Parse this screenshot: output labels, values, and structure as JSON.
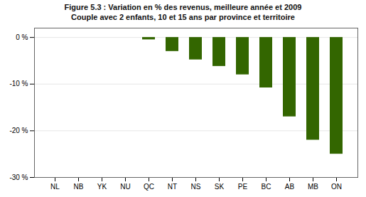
{
  "chart_data": {
    "type": "bar",
    "title": "Figure 5.3 : Variation en % des revenus, meilleure année et 2009",
    "subtitle": "Couple avec 2 enfants, 10 et 15 ans par province et territoire",
    "categories": [
      "NL",
      "NB",
      "YK",
      "NU",
      "QC",
      "NT",
      "NS",
      "SK",
      "PE",
      "BC",
      "AB",
      "MB",
      "ON"
    ],
    "values": [
      0,
      0,
      0,
      0,
      -0.5,
      -3.0,
      -4.8,
      -6.2,
      -8.0,
      -10.8,
      -17.0,
      -22.0,
      -25.0
    ],
    "color": "#336600",
    "ylim": [
      -30,
      2
    ],
    "yticks": [
      {
        "value": 0,
        "label": "0 %"
      },
      {
        "value": -10,
        "label": "-10 %"
      },
      {
        "value": -20,
        "label": "-20 %"
      },
      {
        "value": -30,
        "label": "-30 %"
      }
    ],
    "grid": true
  }
}
